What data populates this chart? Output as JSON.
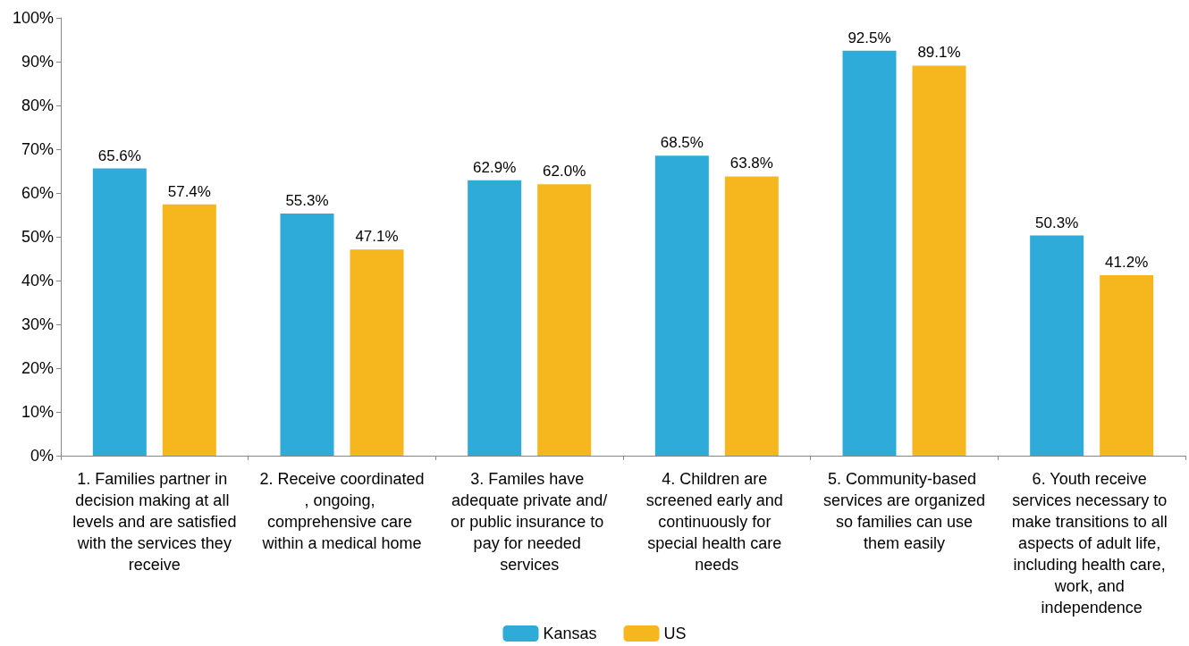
{
  "chart_data": {
    "type": "bar",
    "categories": [
      "1. Families partner in decision making at all levels and are satisfied with the services they receive",
      "2. Receive coordinated, ongoing, comprehensive care within a medical home",
      "3. Familes have adequate private and/or public insurance to pay for needed services",
      "4. Children are screened early and continuously for special health care needs",
      "5. Community-based services are organized so families can use them easily",
      "6. Youth receive services necessary to make transitions to all aspects of adult life, including health care, work, and independence"
    ],
    "series": [
      {
        "name": "Kansas",
        "color": "#2eabd8",
        "values": [
          65.6,
          55.3,
          62.9,
          68.5,
          92.5,
          50.3
        ],
        "value_labels": [
          "65.6%",
          "55.3%",
          "62.9%",
          "68.5%",
          "92.5%",
          "50.3%"
        ]
      },
      {
        "name": "US",
        "color": "#f6b61e",
        "values": [
          57.4,
          47.1,
          62.0,
          63.8,
          89.1,
          41.2
        ],
        "value_labels": [
          "57.4%",
          "47.1%",
          "62.0%",
          "63.8%",
          "89.1%",
          "41.2%"
        ]
      }
    ],
    "ylim": [
      0,
      100
    ],
    "yticks": [
      {
        "value": 0,
        "label": "0%"
      },
      {
        "value": 10,
        "label": "10%"
      },
      {
        "value": 20,
        "label": "20%"
      },
      {
        "value": 30,
        "label": "30%"
      },
      {
        "value": 40,
        "label": "40%"
      },
      {
        "value": 50,
        "label": "50%"
      },
      {
        "value": 60,
        "label": "60%"
      },
      {
        "value": 70,
        "label": "70%"
      },
      {
        "value": 80,
        "label": "80%"
      },
      {
        "value": 90,
        "label": "90%"
      },
      {
        "value": 100,
        "label": "100%"
      }
    ],
    "grid": false,
    "legend": "bottom"
  }
}
